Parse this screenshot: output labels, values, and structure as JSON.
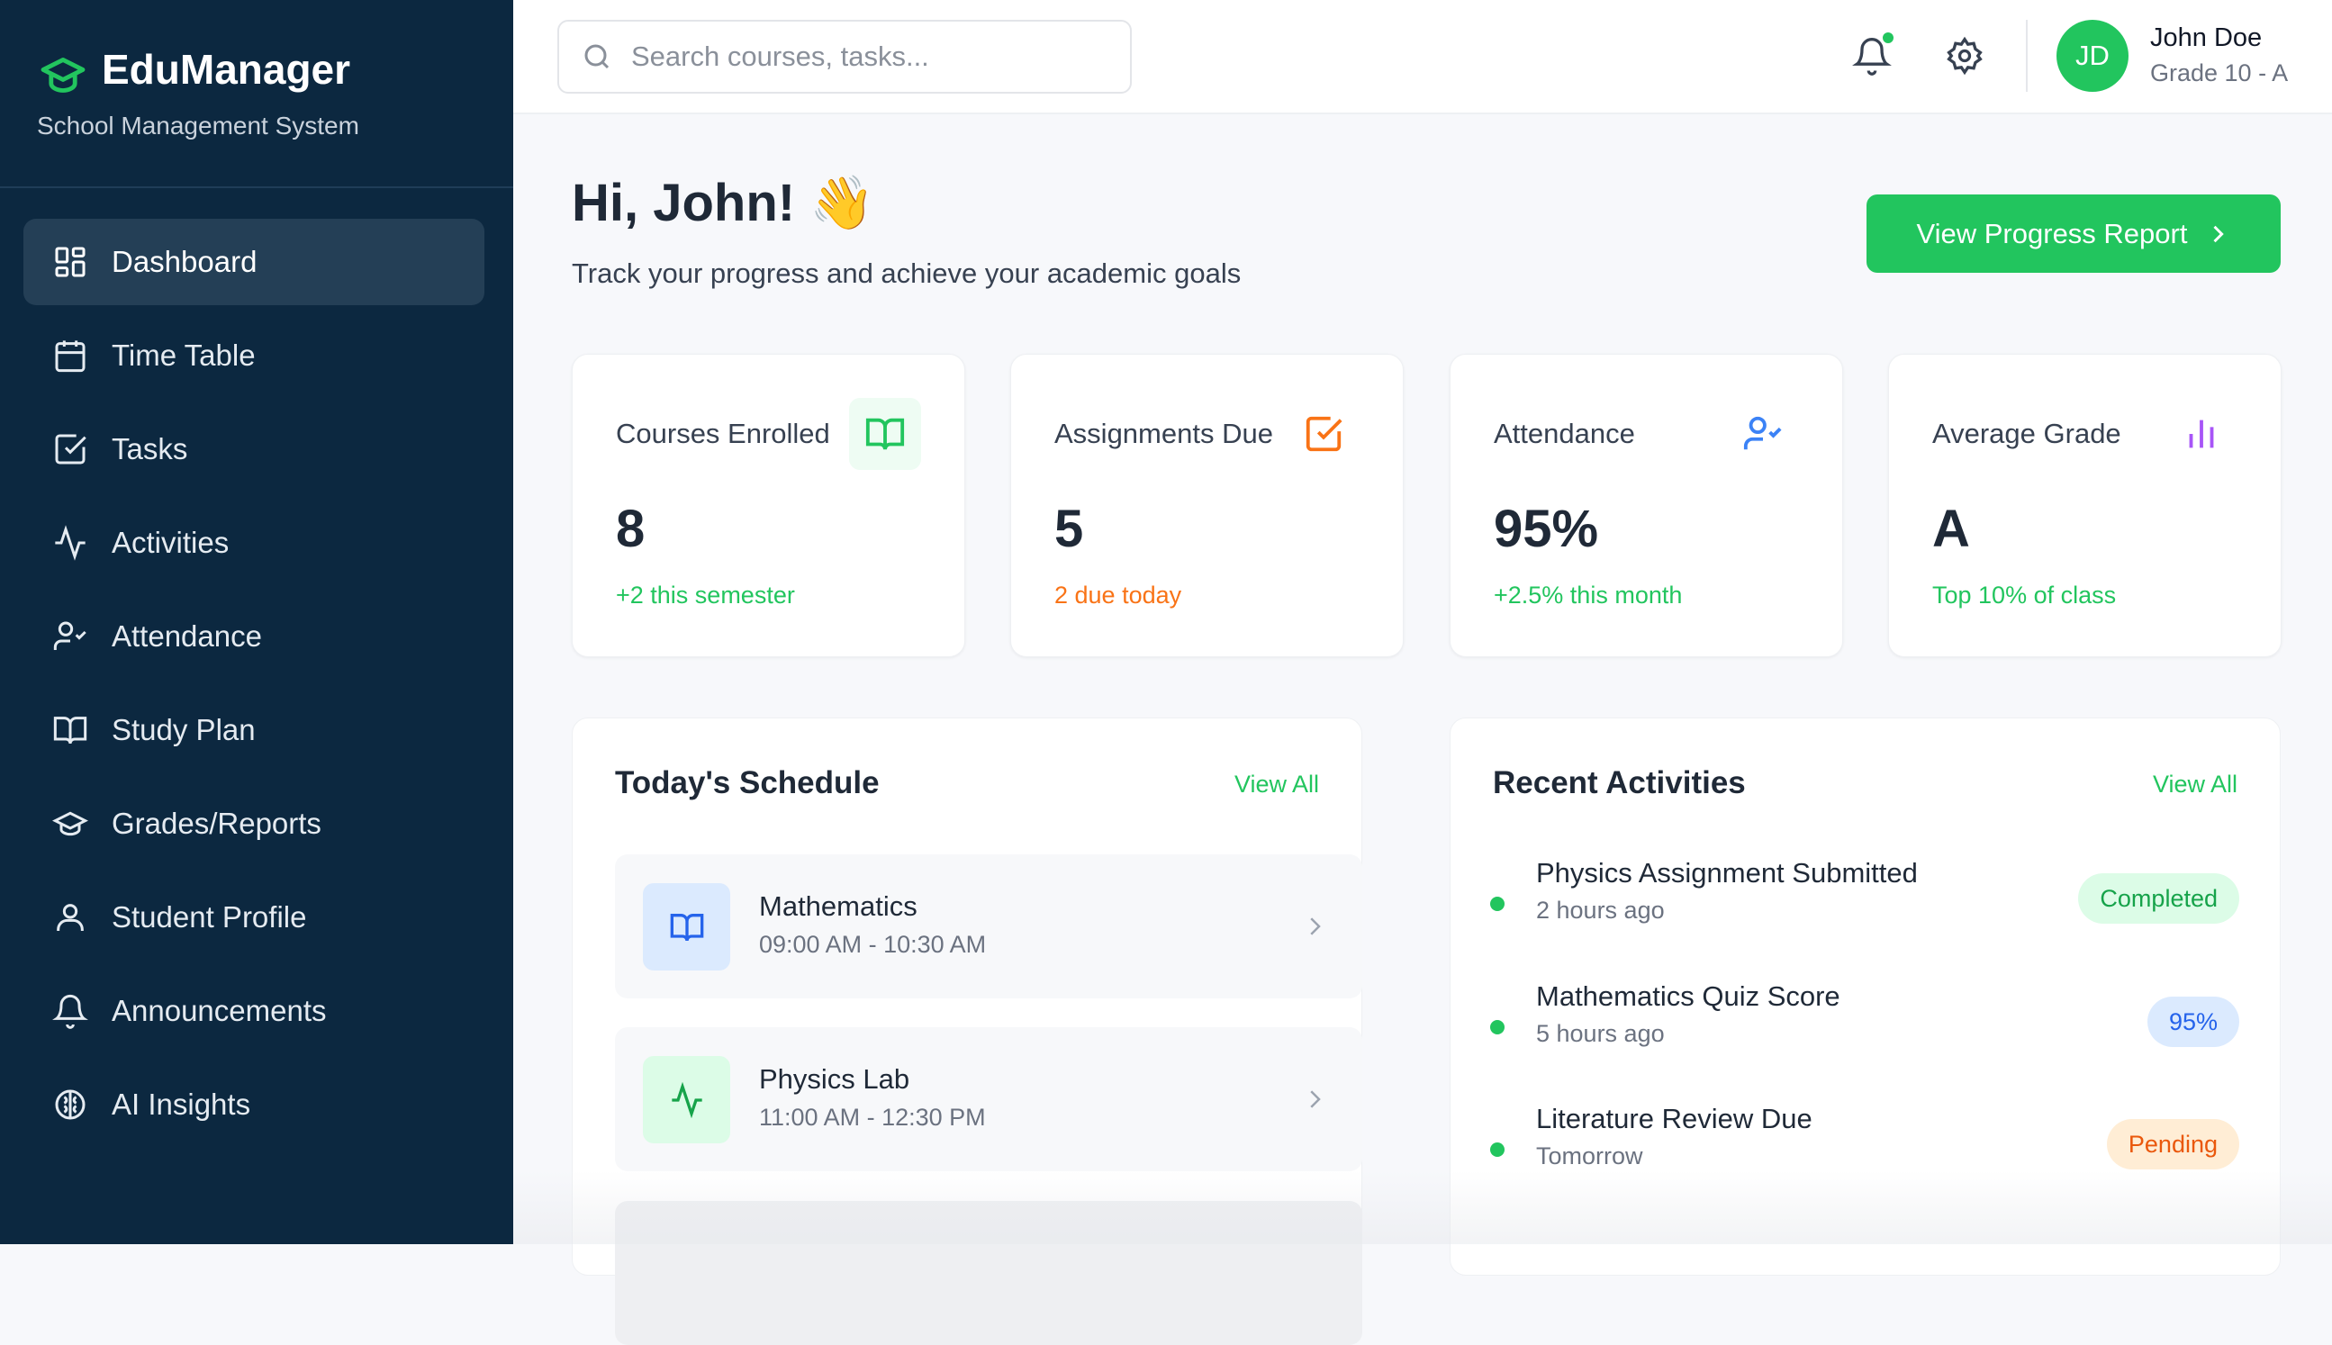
{
  "sidebar": {
    "brand": "EduManager",
    "subtitle": "School Management System",
    "items": [
      {
        "label": "Dashboard",
        "icon": "dashboard-icon",
        "active": true
      },
      {
        "label": "Time Table",
        "icon": "calendar-icon"
      },
      {
        "label": "Tasks",
        "icon": "checkbox-icon"
      },
      {
        "label": "Activities",
        "icon": "activity-icon"
      },
      {
        "label": "Attendance",
        "icon": "user-check-icon"
      },
      {
        "label": "Study Plan",
        "icon": "book-icon"
      },
      {
        "label": "Grades/Reports",
        "icon": "graduation-cap-icon"
      },
      {
        "label": "Student Profile",
        "icon": "user-icon"
      },
      {
        "label": "Announcements",
        "icon": "bell-icon"
      },
      {
        "label": "AI Insights",
        "icon": "brain-icon"
      }
    ]
  },
  "header": {
    "search_placeholder": "Search courses, tasks...",
    "user": {
      "initials": "JD",
      "name": "John Doe",
      "grade": "Grade 10 - A"
    }
  },
  "main": {
    "greeting": "Hi, John! 👋",
    "subtitle": "Track your progress and achieve your academic goals",
    "report_button": "View Progress Report",
    "stats": [
      {
        "label": "Courses Enrolled",
        "value": "8",
        "sub": "+2 this semester",
        "color": "#22c55e"
      },
      {
        "label": "Assignments Due",
        "value": "5",
        "sub": "2 due today",
        "color": "#f97316"
      },
      {
        "label": "Attendance",
        "value": "95%",
        "sub": "+2.5% this month",
        "color": "#22c55e"
      },
      {
        "label": "Average Grade",
        "value": "A",
        "sub": "Top 10% of class",
        "color": "#22c55e"
      }
    ],
    "schedule": {
      "title": "Today's Schedule",
      "view_all": "View All",
      "items": [
        {
          "title": "Mathematics",
          "time": "09:00 AM - 10:30 AM"
        },
        {
          "title": "Physics Lab",
          "time": "11:00 AM - 12:30 PM"
        }
      ]
    },
    "activities": {
      "title": "Recent Activities",
      "view_all": "View All",
      "items": [
        {
          "title": "Physics Assignment Submitted",
          "time": "2 hours ago",
          "badge": "Completed"
        },
        {
          "title": "Mathematics Quiz Score",
          "time": "5 hours ago",
          "badge": "95%"
        },
        {
          "title": "Literature Review Due",
          "time": "Tomorrow",
          "badge": "Pending"
        }
      ]
    }
  },
  "colors": {
    "sidebar": "#0c2840",
    "accent": "#22c55e",
    "orange": "#f97316",
    "blue": "#3b82f6",
    "purple": "#a855f7"
  }
}
